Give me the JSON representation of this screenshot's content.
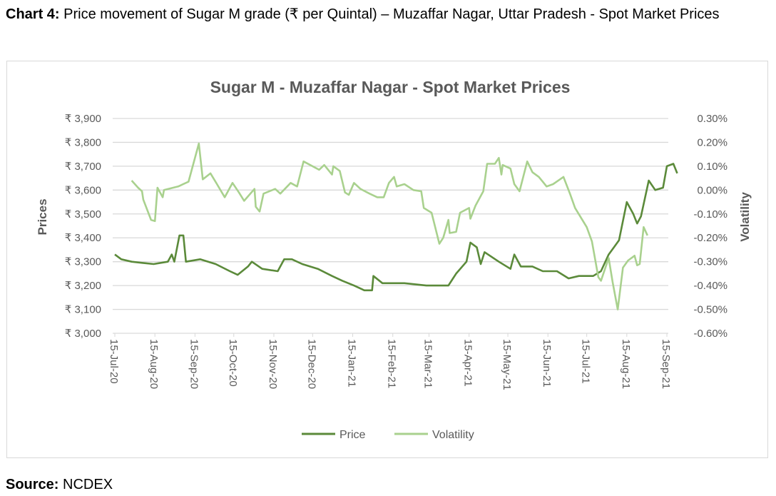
{
  "caption": {
    "label": "Chart 4:",
    "text": " Price movement of Sugar M grade (₹ per Quintal) – Muzaffar Nagar, Uttar Pradesh - Spot Market Prices"
  },
  "source": {
    "label": "Source:",
    "text": " NCDEX"
  },
  "chart_data": {
    "type": "line",
    "title": "Sugar M - Muzaffar Nagar - Spot Market Prices",
    "ylabel": "Prices",
    "y2label": "Volatility",
    "ylim": [
      3000,
      3900
    ],
    "y2lim": [
      -0.6,
      0.3
    ],
    "yticks": [
      "₹ 3,000",
      "₹ 3,100",
      "₹ 3,200",
      "₹ 3,300",
      "₹ 3,400",
      "₹ 3,500",
      "₹ 3,600",
      "₹ 3,700",
      "₹ 3,800",
      "₹ 3,900"
    ],
    "y2ticks": [
      "-0.60%",
      "-0.50%",
      "-0.40%",
      "-0.30%",
      "-0.20%",
      "-0.10%",
      "0.00%",
      "0.10%",
      "0.20%",
      "0.30%"
    ],
    "xticks": [
      "15-Jul-20",
      "15-Aug-20",
      "15-Sep-20",
      "15-Oct-20",
      "15-Nov-20",
      "15-Dec-20",
      "15-Jan-21",
      "15-Feb-21",
      "15-Mar-21",
      "15-Apr-21",
      "15-May-21",
      "15-Jun-21",
      "15-Jul-21",
      "15-Aug-21",
      "15-Sep-21"
    ],
    "xlim": [
      "2020-07-15",
      "2021-09-28"
    ],
    "grid": true,
    "legend": "bottom",
    "series": [
      {
        "name": "Price",
        "axis": "left",
        "color": "#5b8a3a",
        "points": [
          [
            "2020-07-15",
            3330
          ],
          [
            "2020-07-20",
            3310
          ],
          [
            "2020-07-28",
            3300
          ],
          [
            "2020-08-05",
            3295
          ],
          [
            "2020-08-14",
            3290
          ],
          [
            "2020-08-25",
            3300
          ],
          [
            "2020-08-28",
            3330
          ],
          [
            "2020-08-30",
            3300
          ],
          [
            "2020-09-03",
            3410
          ],
          [
            "2020-09-06",
            3410
          ],
          [
            "2020-09-08",
            3300
          ],
          [
            "2020-09-19",
            3310
          ],
          [
            "2020-10-01",
            3290
          ],
          [
            "2020-10-12",
            3260
          ],
          [
            "2020-10-18",
            3245
          ],
          [
            "2020-10-26",
            3280
          ],
          [
            "2020-10-29",
            3300
          ],
          [
            "2020-11-06",
            3270
          ],
          [
            "2020-11-18",
            3260
          ],
          [
            "2020-11-23",
            3310
          ],
          [
            "2020-11-29",
            3310
          ],
          [
            "2020-12-07",
            3290
          ],
          [
            "2020-12-19",
            3270
          ],
          [
            "2020-12-30",
            3240
          ],
          [
            "2021-01-07",
            3220
          ],
          [
            "2021-01-16",
            3200
          ],
          [
            "2021-01-24",
            3180
          ],
          [
            "2021-01-30",
            3180
          ],
          [
            "2021-01-31",
            3240
          ],
          [
            "2021-02-07",
            3210
          ],
          [
            "2021-02-24",
            3210
          ],
          [
            "2021-03-13",
            3200
          ],
          [
            "2021-03-30",
            3200
          ],
          [
            "2021-04-05",
            3250
          ],
          [
            "2021-04-13",
            3300
          ],
          [
            "2021-04-16",
            3380
          ],
          [
            "2021-04-21",
            3360
          ],
          [
            "2021-04-24",
            3290
          ],
          [
            "2021-04-27",
            3340
          ],
          [
            "2021-05-08",
            3300
          ],
          [
            "2021-05-17",
            3270
          ],
          [
            "2021-05-20",
            3330
          ],
          [
            "2021-05-25",
            3280
          ],
          [
            "2021-06-03",
            3280
          ],
          [
            "2021-06-11",
            3260
          ],
          [
            "2021-06-22",
            3260
          ],
          [
            "2021-07-01",
            3230
          ],
          [
            "2021-07-09",
            3240
          ],
          [
            "2021-07-20",
            3240
          ],
          [
            "2021-07-26",
            3260
          ],
          [
            "2021-08-01",
            3330
          ],
          [
            "2021-08-05",
            3360
          ],
          [
            "2021-08-09",
            3390
          ],
          [
            "2021-08-15",
            3550
          ],
          [
            "2021-08-20",
            3500
          ],
          [
            "2021-08-23",
            3460
          ],
          [
            "2021-08-26",
            3490
          ],
          [
            "2021-09-01",
            3640
          ],
          [
            "2021-09-06",
            3600
          ],
          [
            "2021-09-12",
            3610
          ],
          [
            "2021-09-15",
            3700
          ],
          [
            "2021-09-20",
            3710
          ],
          [
            "2021-09-23",
            3670
          ]
        ]
      },
      {
        "name": "Volatility",
        "axis": "right",
        "color": "#a9d18e",
        "points": [
          [
            "2020-07-28",
            0.04
          ],
          [
            "2020-08-02",
            0.01
          ],
          [
            "2020-08-05",
            -0.005
          ],
          [
            "2020-08-06",
            -0.04
          ],
          [
            "2020-08-12",
            -0.125
          ],
          [
            "2020-08-15",
            -0.13
          ],
          [
            "2020-08-17",
            0.01
          ],
          [
            "2020-08-21",
            -0.03
          ],
          [
            "2020-08-22",
            0.0
          ],
          [
            "2020-09-02",
            0.015
          ],
          [
            "2020-09-10",
            0.035
          ],
          [
            "2020-09-18",
            0.195
          ],
          [
            "2020-09-21",
            0.045
          ],
          [
            "2020-09-27",
            0.07
          ],
          [
            "2020-10-02",
            0.025
          ],
          [
            "2020-10-08",
            -0.03
          ],
          [
            "2020-10-14",
            0.03
          ],
          [
            "2020-10-19",
            -0.01
          ],
          [
            "2020-10-23",
            -0.045
          ],
          [
            "2020-10-31",
            0.005
          ],
          [
            "2020-11-01",
            -0.07
          ],
          [
            "2020-11-04",
            -0.09
          ],
          [
            "2020-11-07",
            -0.015
          ],
          [
            "2020-11-16",
            0.005
          ],
          [
            "2020-11-20",
            -0.015
          ],
          [
            "2020-11-28",
            0.03
          ],
          [
            "2020-12-03",
            0.015
          ],
          [
            "2020-12-08",
            0.12
          ],
          [
            "2020-12-20",
            0.085
          ],
          [
            "2020-12-24",
            0.105
          ],
          [
            "2020-12-30",
            0.065
          ],
          [
            "2020-12-31",
            0.1
          ],
          [
            "2021-01-05",
            0.08
          ],
          [
            "2021-01-09",
            -0.01
          ],
          [
            "2021-01-12",
            -0.02
          ],
          [
            "2021-01-16",
            0.03
          ],
          [
            "2021-01-21",
            0.005
          ],
          [
            "2021-01-28",
            -0.015
          ],
          [
            "2021-02-03",
            -0.03
          ],
          [
            "2021-02-08",
            -0.03
          ],
          [
            "2021-02-12",
            0.03
          ],
          [
            "2021-02-16",
            0.055
          ],
          [
            "2021-02-18",
            0.015
          ],
          [
            "2021-02-24",
            0.025
          ],
          [
            "2021-03-03",
            0.0
          ],
          [
            "2021-03-09",
            -0.005
          ],
          [
            "2021-03-11",
            -0.075
          ],
          [
            "2021-03-17",
            -0.095
          ],
          [
            "2021-03-23",
            -0.225
          ],
          [
            "2021-03-26",
            -0.2
          ],
          [
            "2021-03-30",
            -0.125
          ],
          [
            "2021-03-31",
            -0.18
          ],
          [
            "2021-04-05",
            -0.175
          ],
          [
            "2021-04-08",
            -0.095
          ],
          [
            "2021-04-15",
            -0.075
          ],
          [
            "2021-04-16",
            -0.12
          ],
          [
            "2021-04-20",
            -0.065
          ],
          [
            "2021-04-26",
            -0.005
          ],
          [
            "2021-04-29",
            0.11
          ],
          [
            "2021-05-05",
            0.11
          ],
          [
            "2021-05-08",
            0.135
          ],
          [
            "2021-05-10",
            0.065
          ],
          [
            "2021-05-11",
            0.105
          ],
          [
            "2021-05-17",
            0.09
          ],
          [
            "2021-05-20",
            0.025
          ],
          [
            "2021-05-24",
            -0.005
          ],
          [
            "2021-05-30",
            0.12
          ],
          [
            "2021-06-03",
            0.075
          ],
          [
            "2021-06-08",
            0.055
          ],
          [
            "2021-06-14",
            0.015
          ],
          [
            "2021-06-19",
            0.025
          ],
          [
            "2021-06-27",
            0.055
          ],
          [
            "2021-07-02",
            -0.015
          ],
          [
            "2021-07-06",
            -0.075
          ],
          [
            "2021-07-15",
            -0.155
          ],
          [
            "2021-07-19",
            -0.215
          ],
          [
            "2021-07-24",
            -0.365
          ],
          [
            "2021-07-26",
            -0.38
          ],
          [
            "2021-08-01",
            -0.285
          ],
          [
            "2021-08-04",
            -0.385
          ],
          [
            "2021-08-08",
            -0.5
          ],
          [
            "2021-08-12",
            -0.325
          ],
          [
            "2021-08-16",
            -0.295
          ],
          [
            "2021-08-21",
            -0.275
          ],
          [
            "2021-08-23",
            -0.315
          ],
          [
            "2021-08-25",
            -0.31
          ],
          [
            "2021-08-28",
            -0.155
          ],
          [
            "2021-08-31",
            -0.19
          ]
        ]
      }
    ]
  }
}
